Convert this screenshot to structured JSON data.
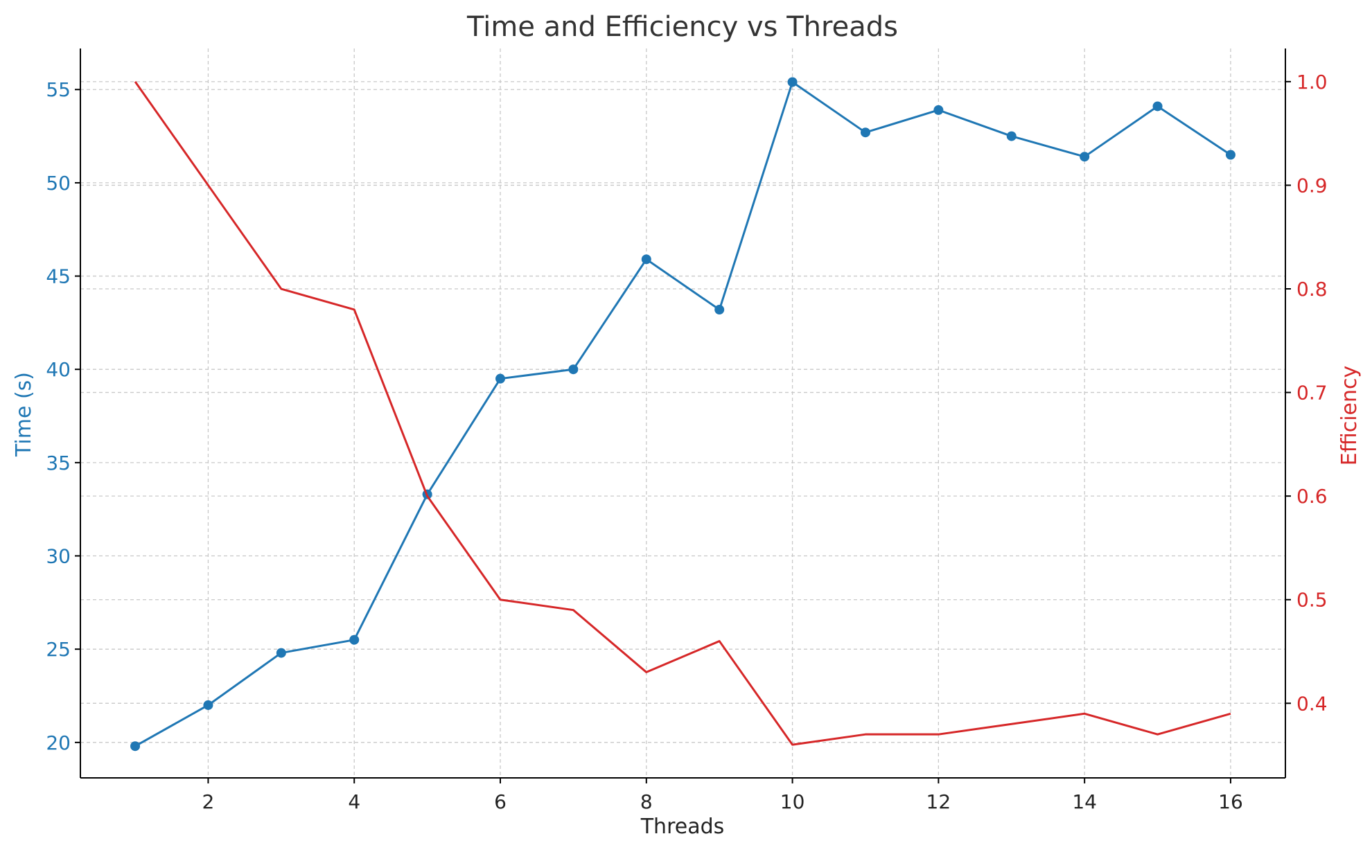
{
  "chart_data": {
    "type": "line",
    "title": "Time and Efficiency vs Threads",
    "xlabel": "Threads",
    "ylabel_left": "Time (s)",
    "ylabel_right": "Efficiency",
    "x": [
      1,
      2,
      3,
      4,
      5,
      6,
      7,
      8,
      9,
      10,
      11,
      12,
      13,
      14,
      15,
      16
    ],
    "x_ticks": [
      2,
      4,
      6,
      8,
      10,
      12,
      14,
      16
    ],
    "xlim": [
      0.25,
      16.75
    ],
    "y_left_ticks": [
      20,
      25,
      30,
      35,
      40,
      45,
      50,
      55
    ],
    "ylim_left": [
      18.1,
      57.2
    ],
    "y_right_ticks": [
      "0.4",
      "0.5",
      "0.6",
      "0.7",
      "0.8",
      "0.9",
      "1.0"
    ],
    "ylim_right": [
      0.328,
      1.032
    ],
    "grid": true,
    "series": [
      {
        "name": "Time (s)",
        "axis": "left",
        "color": "#1f77b4",
        "marker": "circle",
        "values": [
          19.8,
          22.0,
          24.8,
          25.5,
          33.3,
          39.5,
          40.0,
          45.9,
          43.2,
          55.4,
          52.7,
          53.9,
          52.5,
          51.4,
          54.1,
          51.5
        ]
      },
      {
        "name": "Efficiency",
        "axis": "right",
        "color": "#d62728",
        "marker": "none",
        "values": [
          1.0,
          0.9,
          0.8,
          0.78,
          0.6,
          0.5,
          0.49,
          0.43,
          0.46,
          0.36,
          0.37,
          0.37,
          0.38,
          0.39,
          0.37,
          0.39
        ]
      }
    ]
  }
}
